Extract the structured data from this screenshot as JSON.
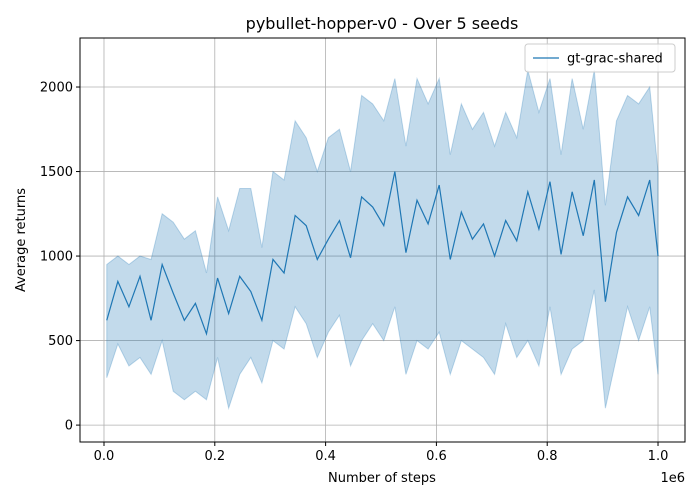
{
  "chart_data": {
    "type": "line",
    "title": "pybullet-hopper-v0 - Over 5 seeds",
    "xlabel": "Number of steps",
    "ylabel": "Average returns",
    "x_offset_label": "1e6",
    "x": [
      0.005,
      0.025,
      0.045,
      0.065,
      0.085,
      0.105,
      0.125,
      0.145,
      0.165,
      0.185,
      0.205,
      0.225,
      0.245,
      0.265,
      0.285,
      0.305,
      0.325,
      0.345,
      0.365,
      0.385,
      0.405,
      0.425,
      0.445,
      0.465,
      0.485,
      0.505,
      0.525,
      0.545,
      0.565,
      0.585,
      0.605,
      0.625,
      0.645,
      0.665,
      0.685,
      0.705,
      0.725,
      0.745,
      0.765,
      0.785,
      0.805,
      0.825,
      0.845,
      0.865,
      0.885,
      0.905,
      0.925,
      0.945,
      0.965,
      0.985,
      1.0
    ],
    "series": [
      {
        "name": "gt-grac-shared",
        "color": "#1f77b4",
        "band_color": "#1f77b4",
        "band_opacity": 0.27,
        "values": [
          620,
          850,
          700,
          880,
          620,
          950,
          780,
          620,
          720,
          540,
          870,
          660,
          880,
          790,
          620,
          980,
          900,
          1240,
          1180,
          980,
          1100,
          1210,
          990,
          1350,
          1290,
          1180,
          1500,
          1020,
          1330,
          1190,
          1420,
          980,
          1260,
          1100,
          1190,
          1000,
          1210,
          1090,
          1380,
          1160,
          1440,
          1010,
          1380,
          1120,
          1450,
          730,
          1140,
          1350,
          1240,
          1450,
          1000
        ],
        "lower": [
          280,
          480,
          350,
          400,
          300,
          500,
          200,
          150,
          200,
          150,
          400,
          100,
          300,
          400,
          250,
          500,
          450,
          700,
          600,
          400,
          550,
          650,
          350,
          500,
          600,
          500,
          700,
          300,
          500,
          450,
          550,
          300,
          500,
          450,
          400,
          300,
          600,
          400,
          500,
          350,
          700,
          300,
          450,
          500,
          800,
          100,
          400,
          700,
          500,
          700,
          300
        ],
        "upper": [
          950,
          1000,
          950,
          1000,
          980,
          1250,
          1200,
          1100,
          1150,
          900,
          1350,
          1150,
          1400,
          1400,
          1050,
          1500,
          1450,
          1800,
          1700,
          1500,
          1700,
          1750,
          1500,
          1950,
          1900,
          1800,
          2050,
          1650,
          2050,
          1900,
          2050,
          1600,
          1900,
          1750,
          1850,
          1650,
          1850,
          1700,
          2100,
          1850,
          2050,
          1600,
          2050,
          1750,
          2100,
          1300,
          1800,
          1950,
          1900,
          2000,
          1500
        ]
      }
    ],
    "xlim": [
      -0.0433,
      1.0487
    ],
    "ylim": [
      -100,
      2290
    ],
    "xticks": [
      {
        "value": 0,
        "label": "0.0"
      },
      {
        "value": 0.2,
        "label": "0.2"
      },
      {
        "value": 0.4,
        "label": "0.4"
      },
      {
        "value": 0.6,
        "label": "0.6"
      },
      {
        "value": 0.8,
        "label": "0.8"
      },
      {
        "value": 1,
        "label": "1.0"
      }
    ],
    "yticks": [
      0,
      500,
      1000,
      1500,
      2000
    ],
    "grid": true,
    "legend": "upper right"
  }
}
